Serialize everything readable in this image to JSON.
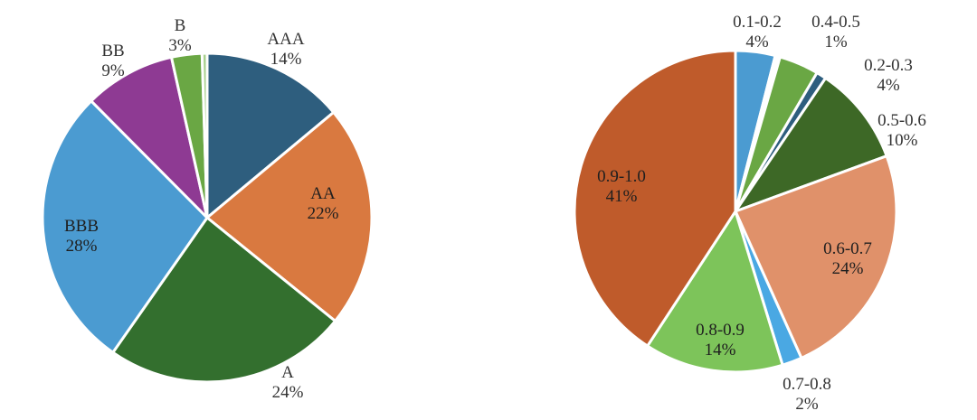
{
  "chart_data": [
    {
      "type": "pie",
      "title": "",
      "start_angle_deg": 0,
      "direction": "clockwise",
      "slices": [
        {
          "label": "AAA",
          "value": 14,
          "value_label": "14%",
          "color": "#2e5e7e"
        },
        {
          "label": "AA",
          "value": 22,
          "value_label": "22%",
          "color": "#d97940"
        },
        {
          "label": "A",
          "value": 24,
          "value_label": "24%",
          "color": "#336f2e"
        },
        {
          "label": "BBB",
          "value": 28,
          "value_label": "28%",
          "color": "#4b9bd1"
        },
        {
          "label": "BB",
          "value": 9,
          "value_label": "9%",
          "color": "#8e3a93"
        },
        {
          "label": "B",
          "value": 3,
          "value_label": "3%",
          "color": "#6aa744"
        },
        {
          "label": "",
          "value": 0.5,
          "value_label": "",
          "color": "#a8d08d"
        }
      ]
    },
    {
      "type": "pie",
      "title": "",
      "start_angle_deg": 0,
      "direction": "clockwise",
      "slices": [
        {
          "label": "0.1-0.2",
          "value": 4,
          "value_label": "4%",
          "color": "#4b9bd1"
        },
        {
          "label": "",
          "value": 0.5,
          "value_label": "",
          "color": "#ffffff"
        },
        {
          "label": "0.2-0.3",
          "value": 4,
          "value_label": "4%",
          "color": "#6aa744"
        },
        {
          "label": "0.4-0.5",
          "value": 1,
          "value_label": "1%",
          "color": "#2e5e7e"
        },
        {
          "label": "0.5-0.6",
          "value": 10,
          "value_label": "10%",
          "color": "#3d6826"
        },
        {
          "label": "0.6-0.7",
          "value": 24,
          "value_label": "24%",
          "color": "#e0916a"
        },
        {
          "label": "0.7-0.8",
          "value": 2,
          "value_label": "2%",
          "color": "#4aa8e3"
        },
        {
          "label": "0.8-0.9",
          "value": 14,
          "value_label": "14%",
          "color": "#7dc45a"
        },
        {
          "label": "0.9-1.0",
          "value": 41,
          "value_label": "41%",
          "color": "#bf5b2b"
        }
      ]
    }
  ]
}
